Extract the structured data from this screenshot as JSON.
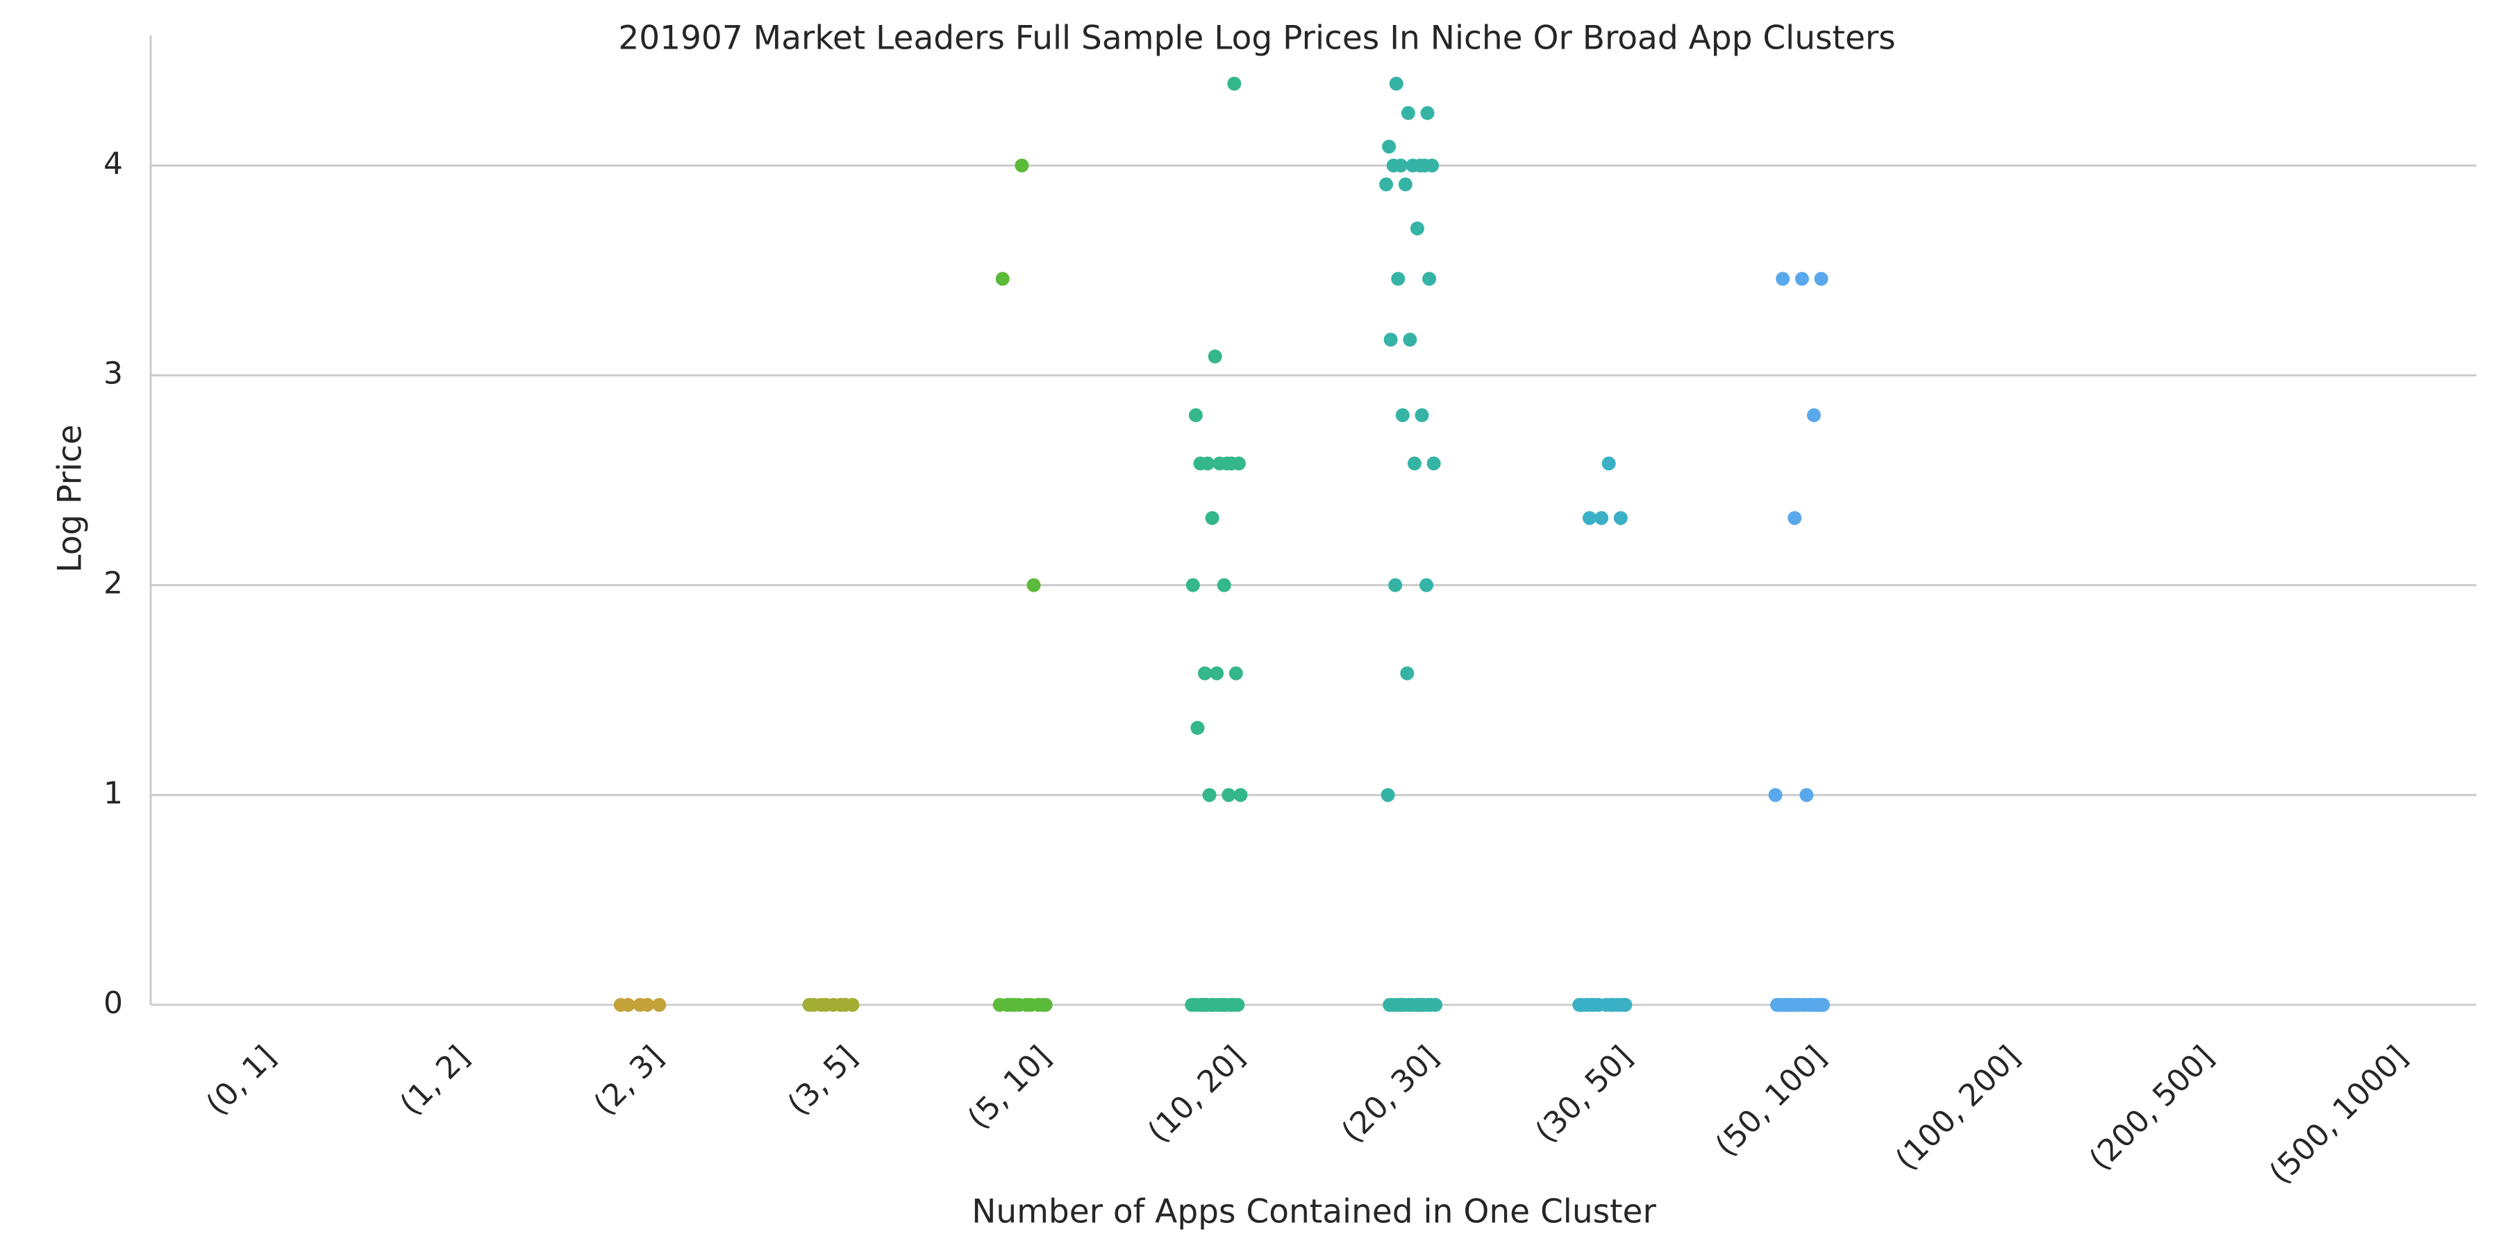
{
  "chart_data": {
    "type": "strip",
    "title": "201907 Market Leaders Full Sample Log Prices In Niche Or Broad App Clusters",
    "x_label": "Number of Apps Contained in One Cluster",
    "y_label": "Log Price",
    "categories": [
      "(0, 1]",
      "(1, 2]",
      "(2, 3]",
      "(3, 5]",
      "(5, 10]",
      "(10, 20]",
      "(20, 30]",
      "(30, 50]",
      "(50, 100]",
      "(100, 200]",
      "(200, 500]",
      "(500, 1000]"
    ],
    "colors": [
      null,
      null,
      "#c4a23a",
      "#a3ad34",
      "#5cba3a",
      "#33b78b",
      "#35b4a6",
      "#3ab0c6",
      "#5aa8ec",
      null,
      null,
      null
    ],
    "values": [
      [],
      [],
      [
        0,
        0,
        0,
        0,
        0
      ],
      [
        0,
        0,
        0,
        0,
        0,
        0,
        0,
        0
      ],
      [
        4.0,
        3.46,
        2.0,
        0,
        0,
        0,
        0,
        0,
        0,
        0,
        0,
        0,
        0
      ],
      [
        4.39,
        3.09,
        2.81,
        2.58,
        2.58,
        2.58,
        2.58,
        2.58,
        2.58,
        2.32,
        2.0,
        2.0,
        1.58,
        1.58,
        1.58,
        1.32,
        1.0,
        1.0,
        1.0,
        0,
        0,
        0,
        0,
        0,
        0,
        0,
        0,
        0,
        0,
        0,
        0,
        0,
        0,
        0
      ],
      [
        4.39,
        4.25,
        4.25,
        4.09,
        4.0,
        4.0,
        4.0,
        4.0,
        4.0,
        4.0,
        3.91,
        3.91,
        3.7,
        3.46,
        3.46,
        3.17,
        3.17,
        2.81,
        2.81,
        2.58,
        2.58,
        2.0,
        2.0,
        1.58,
        1.0,
        0,
        0,
        0,
        0,
        0,
        0,
        0,
        0,
        0,
        0,
        0,
        0,
        0,
        0,
        0
      ],
      [
        2.58,
        2.32,
        2.32,
        2.32,
        0,
        0,
        0,
        0,
        0,
        0,
        0,
        0,
        0,
        0,
        0,
        0
      ],
      [
        3.46,
        3.46,
        3.46,
        2.81,
        2.32,
        1.0,
        1.0,
        0,
        0,
        0,
        0,
        0,
        0,
        0,
        0,
        0,
        0,
        0,
        0,
        0,
        0,
        0
      ],
      [],
      [],
      []
    ],
    "ylim": [
      0,
      4.62
    ],
    "yticks": [
      0,
      1,
      2,
      3,
      4
    ],
    "grid": true
  }
}
